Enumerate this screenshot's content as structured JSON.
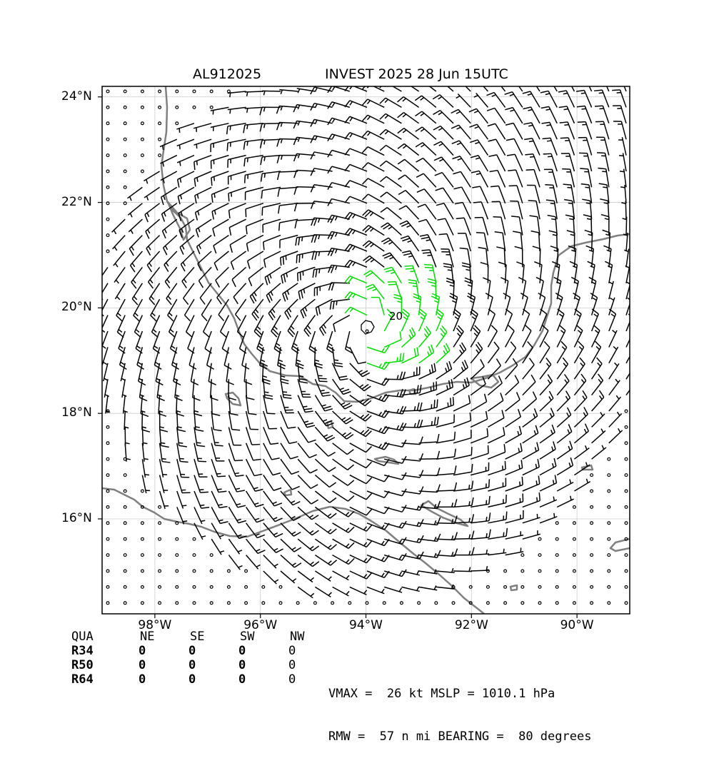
{
  "header": {
    "storm_id": "AL912025",
    "title": "INVEST 2025 28 Jun 15UTC"
  },
  "map": {
    "lon_range": [
      -99,
      -89
    ],
    "lat_range": [
      14.2,
      24.2
    ],
    "lat_ticks": [
      {
        "value": 24,
        "label": "24°N"
      },
      {
        "value": 22,
        "label": "22°N"
      },
      {
        "value": 20,
        "label": "20°N"
      },
      {
        "value": 18,
        "label": "18°N"
      },
      {
        "value": 16,
        "label": "16°N"
      }
    ],
    "lon_ticks": [
      {
        "value": -98,
        "label": "98°W"
      },
      {
        "value": -96,
        "label": "96°W"
      },
      {
        "value": -94,
        "label": "94°W"
      },
      {
        "value": -92,
        "label": "92°W"
      },
      {
        "value": -90,
        "label": "90°W"
      }
    ],
    "storm_center": {
      "lon": -94.0,
      "lat": 19.6
    },
    "contour_label": "20",
    "colors": {
      "coastline": "#808080",
      "barbs": "#000000",
      "strong_wind": "#00dd00",
      "grid": "#cccccc"
    }
  },
  "stats": {
    "headers": [
      "QUA",
      "NE",
      "SE",
      "SW",
      "NW"
    ],
    "rows": [
      {
        "label": "R34",
        "values": [
          "0",
          "0",
          "0",
          "0"
        ]
      },
      {
        "label": "R50",
        "values": [
          "0",
          "0",
          "0",
          "0"
        ]
      },
      {
        "label": "R64",
        "values": [
          "0",
          "0",
          "0",
          "0"
        ]
      }
    ]
  },
  "summary": {
    "line1": "VMAX =  26 kt MSLP = 1010.1 hPa",
    "line2": "RMW =  57 n mi BEARING =  80 degrees"
  }
}
